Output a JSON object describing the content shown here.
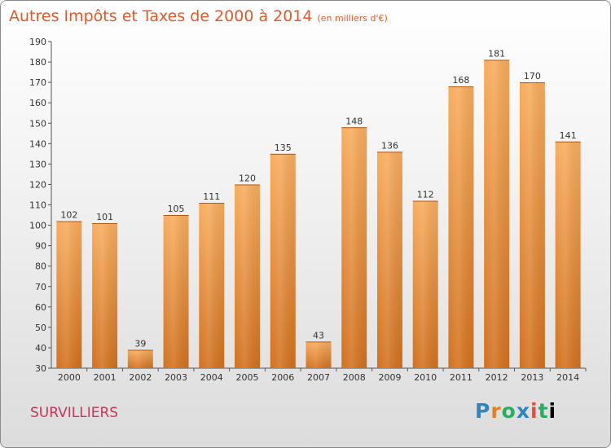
{
  "header": {
    "title": "Autres Impôts et Taxes de 2000 à 2014",
    "subtitle": "(en milliers d'€)"
  },
  "footer": {
    "city": "SURVILLIERS",
    "logo_text": "Proxiti"
  },
  "chart_data": {
    "type": "bar",
    "title": "Autres Impôts et Taxes de 2000 à 2014",
    "subtitle": "(en milliers d'€)",
    "xlabel": "",
    "ylabel": "",
    "categories": [
      "2000",
      "2001",
      "2002",
      "2003",
      "2004",
      "2005",
      "2006",
      "2007",
      "2008",
      "2009",
      "2010",
      "2011",
      "2012",
      "2013",
      "2014"
    ],
    "values": [
      102,
      101,
      39,
      105,
      111,
      120,
      135,
      43,
      148,
      136,
      112,
      168,
      181,
      170,
      141
    ],
    "ylim": [
      30,
      190
    ],
    "yticks": [
      30,
      40,
      50,
      60,
      70,
      80,
      90,
      100,
      110,
      120,
      130,
      140,
      150,
      160,
      170,
      180,
      190
    ],
    "grid": false,
    "legend": "none",
    "colors": {
      "bar_light": "#f7a85a",
      "bar_dark": "#d2711f",
      "title": "#e0592a",
      "city": "#c8365a"
    }
  }
}
